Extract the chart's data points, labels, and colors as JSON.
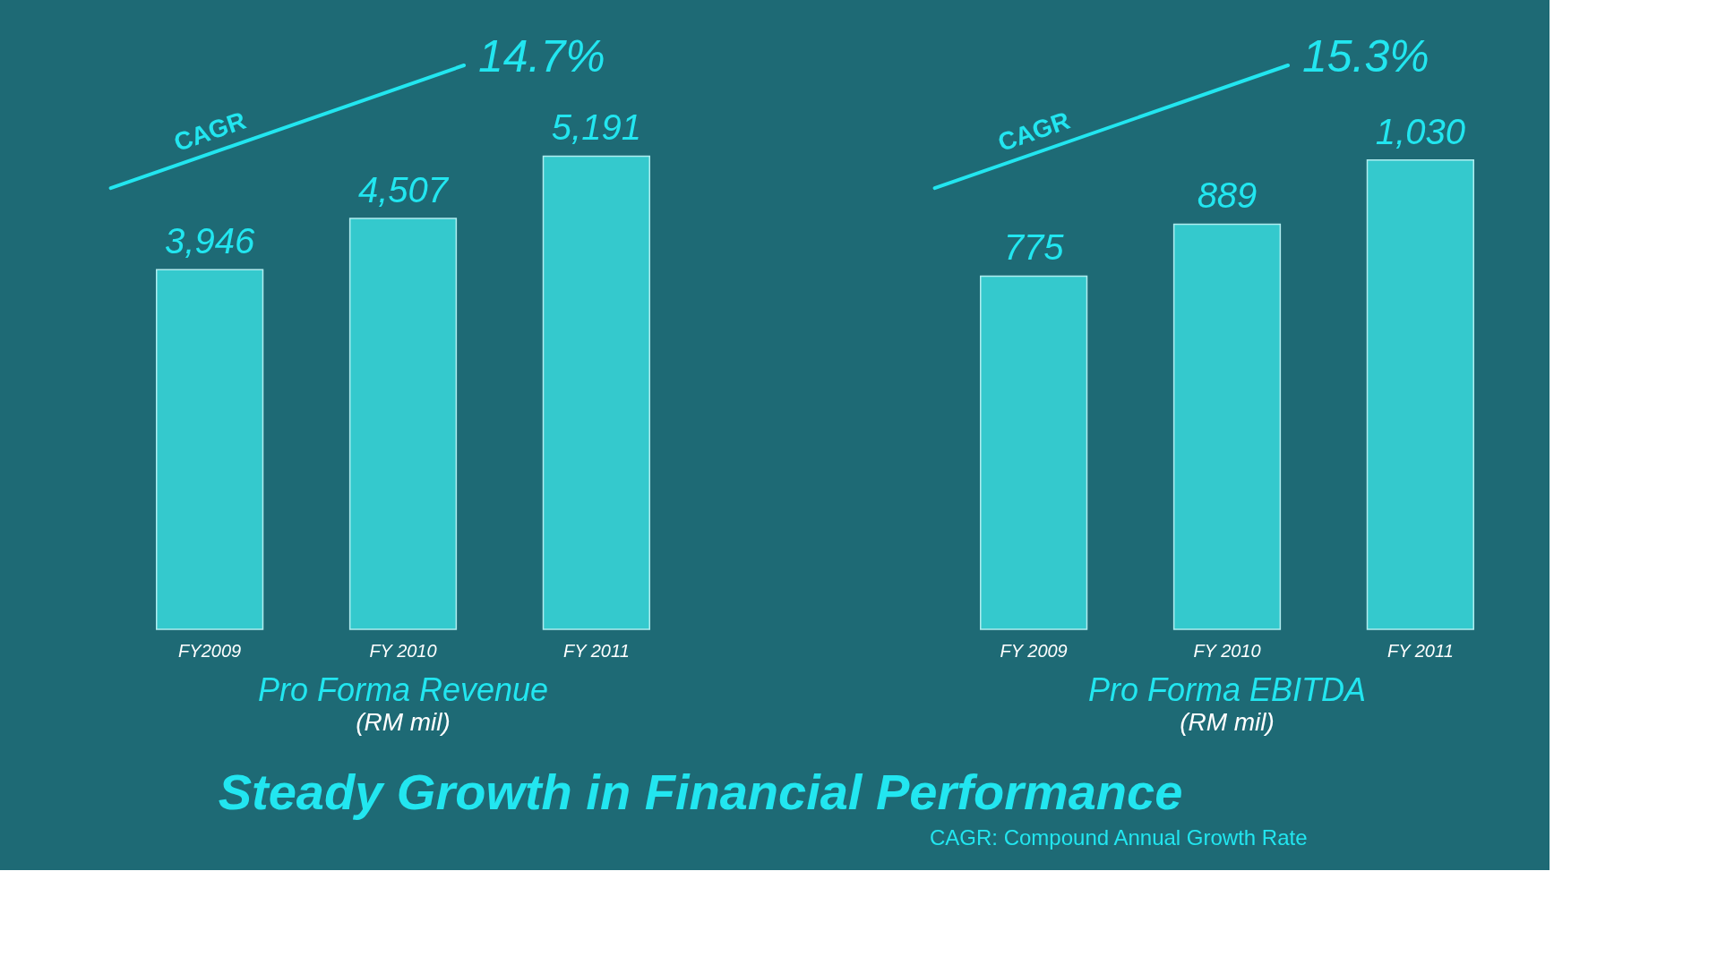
{
  "chart_data": [
    {
      "type": "bar",
      "title": "Pro Forma Revenue",
      "subtitle": "(RM mil)",
      "categories": [
        "FY2009",
        "FY 2010",
        "FY 2011"
      ],
      "values": [
        3946,
        4507,
        5191
      ],
      "value_labels": [
        "3,946",
        "4,507",
        "5,191"
      ],
      "color": "#36cfd2",
      "tick_labels": "x",
      "annotations": [
        "CAGR",
        "14.7%"
      ]
    },
    {
      "type": "bar",
      "title": "Pro Forma EBITDA",
      "subtitle": "(RM mil)",
      "categories": [
        "FY 2009",
        "FY 2010",
        "FY 2011"
      ],
      "values": [
        775,
        889,
        1030
      ],
      "value_labels": [
        "775",
        "889",
        "1,030"
      ],
      "color": "#36cfd2",
      "tick_labels": "x",
      "annotations": [
        "CAGR",
        "15.3%"
      ]
    },
    {
      "type": "other",
      "title": "Steady Growth in Financial Performance",
      "annotations": [
        "CAGR: Compound Annual Growth Rate"
      ]
    }
  ]
}
